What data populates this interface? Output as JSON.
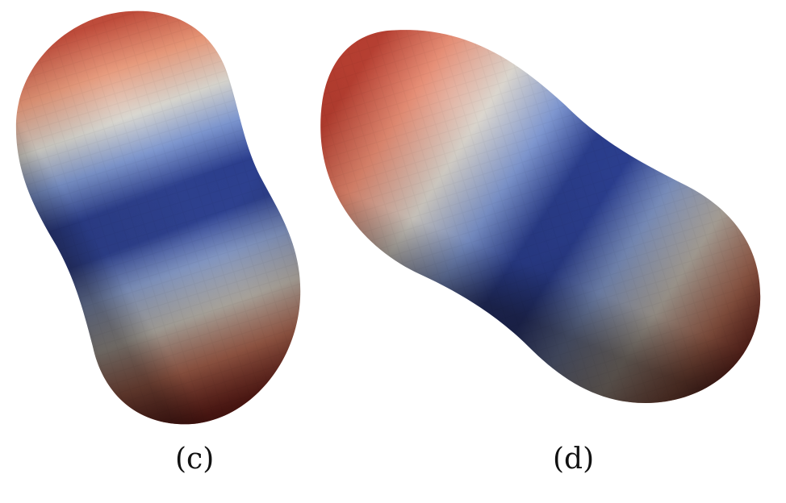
{
  "panels": [
    {
      "label": "(c)",
      "shape": "peanut-shaped-vesicle"
    },
    {
      "label": "(d)",
      "shape": "peanut-shaped-vesicle"
    }
  ],
  "colormap": {
    "cool": "#22347f",
    "mid": "#dedcd6",
    "warm": "#e6826a",
    "hot": "#b53a2c",
    "shadow": "#3a2018"
  }
}
